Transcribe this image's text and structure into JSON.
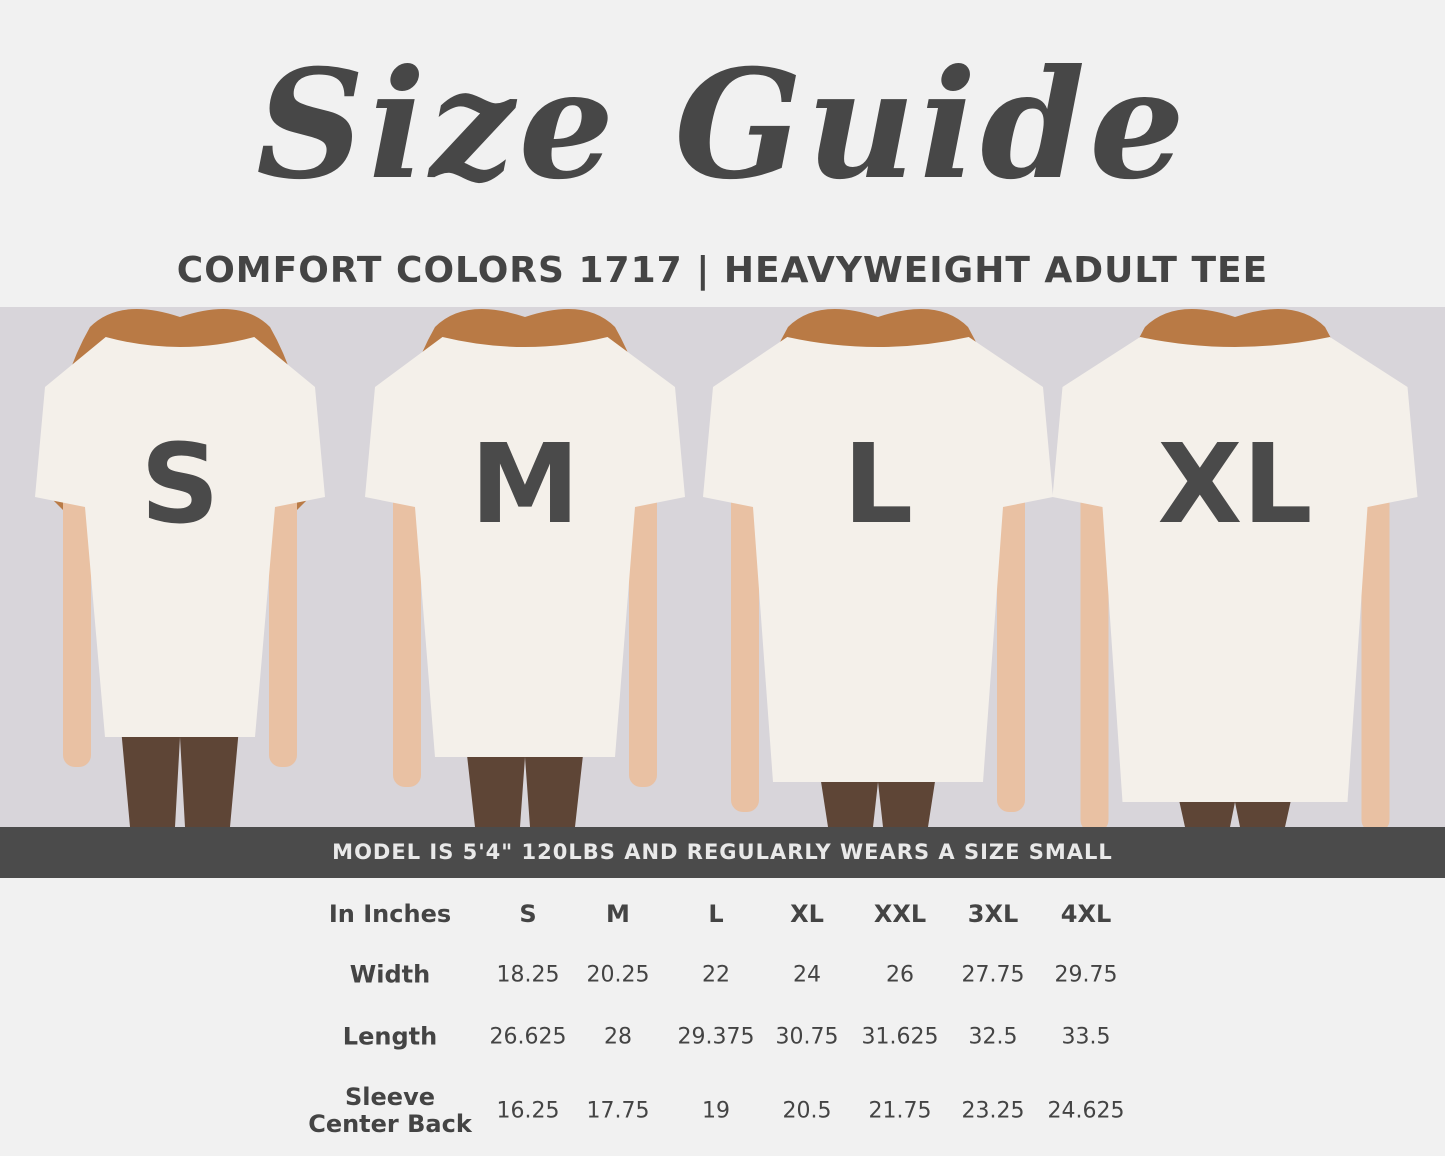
{
  "title": "Size Guide",
  "subtitle": "COMFORT COLORS 1717 | HEAVYWEIGHT ADULT TEE",
  "models": [
    {
      "size_label": "S"
    },
    {
      "size_label": "M"
    },
    {
      "size_label": "L"
    },
    {
      "size_label": "XL"
    }
  ],
  "banner": "MODEL IS 5'4\" 120LBS AND REGULARLY WEARS A SIZE SMALL",
  "colors": {
    "background": "#f1f1f1",
    "text": "#464646",
    "banner": "#4b4b4b",
    "photo_backdrop": "#d8d5da",
    "shirt": "#f4f0ea",
    "hair": "#b97a45",
    "leggings": "#5e4536"
  },
  "table": {
    "corner": "In Inches",
    "sizes": [
      "S",
      "M",
      "L",
      "XL",
      "XXL",
      "3XL",
      "4XL"
    ],
    "rows": [
      {
        "label": "Width",
        "values": [
          "18.25",
          "20.25",
          "22",
          "24",
          "26",
          "27.75",
          "29.75"
        ]
      },
      {
        "label": "Length",
        "values": [
          "26.625",
          "28",
          "29.375",
          "30.75",
          "31.625",
          "32.5",
          "33.5"
        ]
      },
      {
        "label_line1": "Sleeve",
        "label_line2": "Center Back",
        "values": [
          "16.25",
          "17.75",
          "19",
          "20.5",
          "21.75",
          "23.25",
          "24.625"
        ]
      }
    ]
  }
}
